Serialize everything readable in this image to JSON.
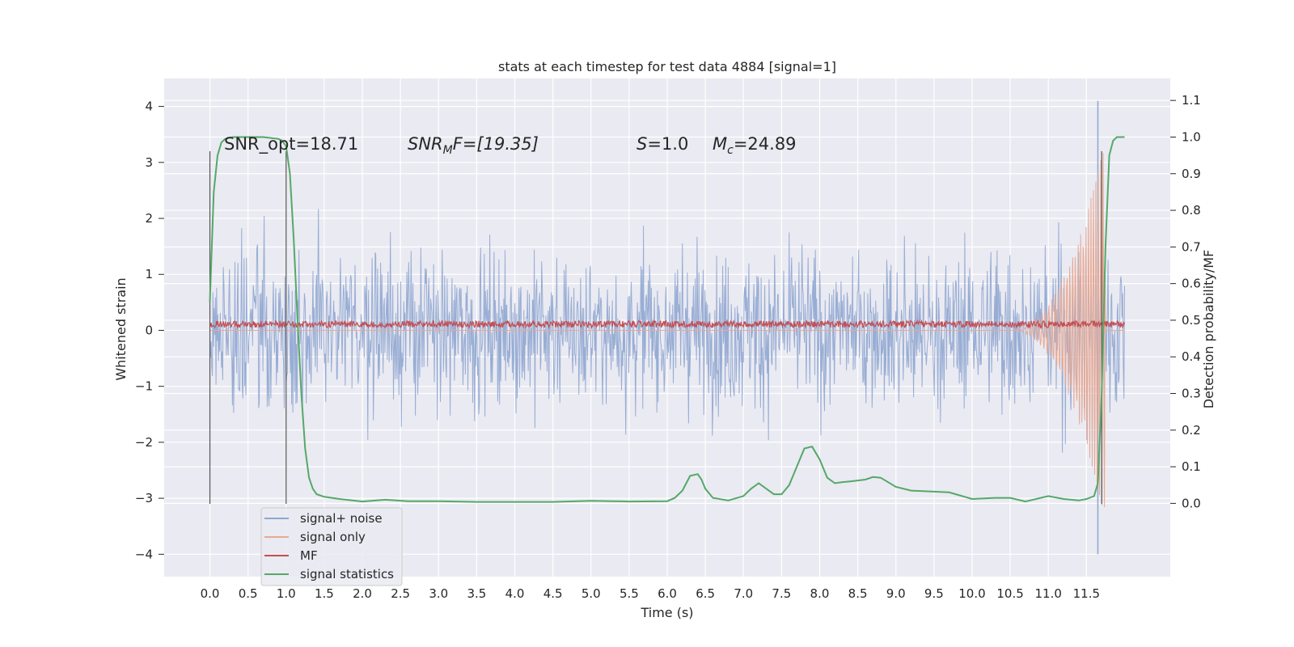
{
  "chart_data": {
    "type": "line",
    "title": "stats at each timestep for test data 4884 [signal=1]",
    "xlabel": "Time (s)",
    "ylabel": "Whitened strain",
    "y2label": "Detection probability/MF",
    "xlim": [
      -0.6,
      12.6
    ],
    "ylim": [
      -4.4,
      4.5
    ],
    "y2lim": [
      -0.2,
      1.16
    ],
    "grid": true,
    "x_ticks": [
      "0.0",
      "0.5",
      "1.0",
      "1.5",
      "2.0",
      "2.5",
      "3.0",
      "3.5",
      "4.0",
      "4.5",
      "5.0",
      "5.5",
      "6.0",
      "6.5",
      "7.0",
      "7.5",
      "8.0",
      "8.5",
      "9.0",
      "9.5",
      "10.0",
      "10.5",
      "11.0",
      "11.5"
    ],
    "y_ticks": [
      "4",
      "3",
      "2",
      "1",
      "0",
      "−1",
      "−2",
      "−3",
      "−4"
    ],
    "y2_ticks": [
      "1.1",
      "1.0",
      "0.9",
      "0.8",
      "0.7",
      "0.6",
      "0.5",
      "0.4",
      "0.3",
      "0.2",
      "0.1",
      "0.0"
    ],
    "annotations": {
      "snr_opt": "SNR_opt=18.71",
      "snr_mf_a": "SNR",
      "snr_mf_b": "M",
      "snr_mf_c": "F=[19.35]",
      "s_a": "S",
      "s_b": "=1.0",
      "mc_a": "M",
      "mc_b": "c",
      "mc_c": "=24.89"
    },
    "legend": {
      "placement": "lower-left",
      "entries": [
        "signal+ noise",
        "signal only",
        "MF",
        "signal statistics"
      ]
    },
    "series": [
      {
        "name": "signal+ noise",
        "axis": "left",
        "color": "#8fa6d0",
        "envelope": {
          "x_start": 0.0,
          "x_end": 12.0,
          "typical_range": [
            -1.9,
            2.0
          ],
          "extremes": [
            -4.0,
            4.1
          ]
        }
      },
      {
        "name": "signal only",
        "axis": "left",
        "color": "#e9a992",
        "envelope": {
          "x_start": 10.5,
          "x_end": 11.75,
          "peak_amplitude": 3.4
        }
      },
      {
        "name": "MF",
        "axis": "left",
        "color": "#c44e52",
        "envelope": {
          "x_start": 0.0,
          "x_end": 12.0,
          "typical_range": [
            0.05,
            0.17
          ]
        }
      },
      {
        "name": "signal statistics",
        "axis": "right",
        "color": "#55a868",
        "x": [
          0.0,
          0.05,
          0.1,
          0.15,
          0.2,
          0.3,
          0.5,
          0.7,
          0.9,
          0.95,
          1.0,
          1.05,
          1.1,
          1.15,
          1.2,
          1.25,
          1.3,
          1.35,
          1.4,
          1.5,
          1.7,
          2.0,
          2.3,
          2.6,
          3.0,
          3.5,
          4.0,
          4.5,
          5.0,
          5.5,
          6.0,
          6.1,
          6.2,
          6.3,
          6.4,
          6.45,
          6.5,
          6.6,
          6.8,
          7.0,
          7.1,
          7.2,
          7.3,
          7.4,
          7.5,
          7.6,
          7.7,
          7.8,
          7.9,
          8.0,
          8.1,
          8.2,
          8.3,
          8.4,
          8.6,
          8.7,
          8.8,
          9.0,
          9.2,
          9.5,
          9.7,
          10.0,
          10.3,
          10.5,
          10.7,
          10.9,
          11.0,
          11.2,
          11.4,
          11.5,
          11.6,
          11.65,
          11.7,
          11.75,
          11.8,
          11.85,
          11.9,
          12.0
        ],
        "y": [
          0.55,
          0.85,
          0.95,
          0.985,
          0.995,
          1.0,
          1.0,
          1.0,
          0.995,
          0.99,
          0.975,
          0.9,
          0.72,
          0.5,
          0.3,
          0.15,
          0.07,
          0.04,
          0.025,
          0.018,
          0.012,
          0.005,
          0.01,
          0.006,
          0.006,
          0.004,
          0.004,
          0.004,
          0.007,
          0.005,
          0.006,
          0.015,
          0.035,
          0.075,
          0.08,
          0.065,
          0.04,
          0.015,
          0.008,
          0.02,
          0.04,
          0.055,
          0.04,
          0.025,
          0.025,
          0.05,
          0.1,
          0.15,
          0.155,
          0.12,
          0.07,
          0.055,
          0.058,
          0.06,
          0.065,
          0.072,
          0.07,
          0.045,
          0.035,
          0.032,
          0.03,
          0.012,
          0.015,
          0.015,
          0.005,
          0.015,
          0.02,
          0.012,
          0.008,
          0.012,
          0.02,
          0.055,
          0.3,
          0.7,
          0.95,
          0.99,
          1.0,
          1.0
        ]
      },
      {
        "name": "markers",
        "axis": "left",
        "color": "#555555",
        "vertical_lines_x": [
          0.0,
          1.0,
          11.7
        ],
        "y_span": [
          -3.1,
          3.2
        ]
      }
    ]
  }
}
